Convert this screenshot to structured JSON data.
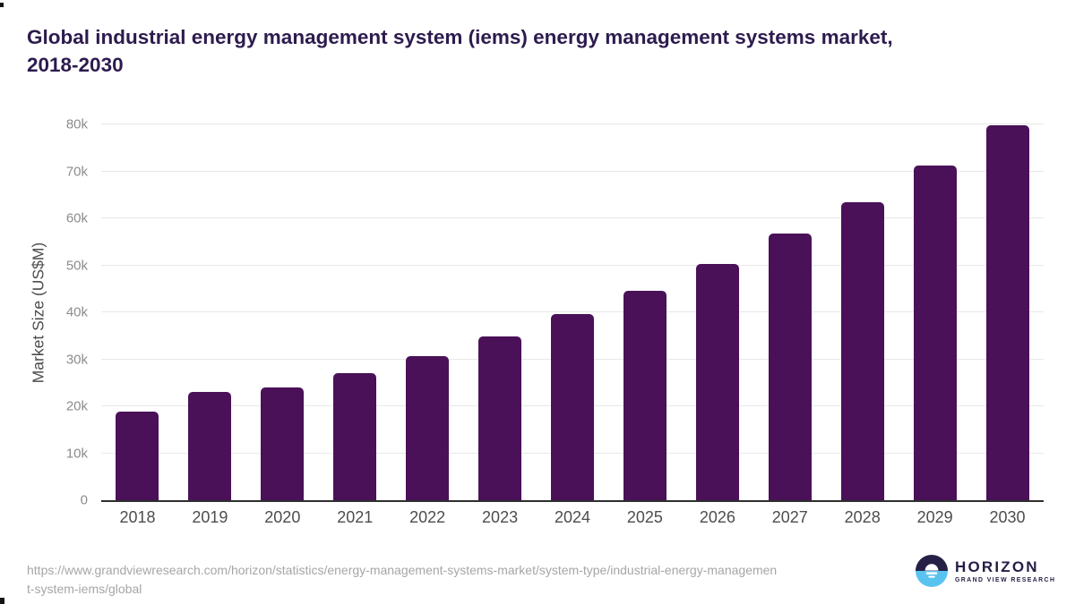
{
  "header": {
    "title_line1": "Global industrial energy management system (iems) energy management systems market,",
    "title_line2": "2018-2030"
  },
  "chart_data": {
    "type": "bar",
    "title": "Global industrial energy management system (iems) energy management systems market, 2018-2030",
    "categories": [
      "2018",
      "2019",
      "2020",
      "2021",
      "2022",
      "2023",
      "2024",
      "2025",
      "2026",
      "2027",
      "2028",
      "2029",
      "2030"
    ],
    "values": [
      18800,
      23000,
      24000,
      27100,
      30600,
      34900,
      39600,
      44600,
      50300,
      56800,
      63500,
      71300,
      79900
    ],
    "unit": "US$M",
    "xlabel": "",
    "ylabel": "Market Size (US$M)",
    "ylim": [
      0,
      80000
    ],
    "yticks": [
      {
        "value": 0,
        "label": "0"
      },
      {
        "value": 10000,
        "label": "10k"
      },
      {
        "value": 20000,
        "label": "20k"
      },
      {
        "value": 30000,
        "label": "30k"
      },
      {
        "value": 40000,
        "label": "40k"
      },
      {
        "value": 50000,
        "label": "50k"
      },
      {
        "value": 60000,
        "label": "60k"
      },
      {
        "value": 70000,
        "label": "70k"
      },
      {
        "value": 80000,
        "label": "80k"
      }
    ],
    "grid": "horizontal",
    "legend_position": "none",
    "bar_color": "#4a1158"
  },
  "footer": {
    "source_url_lines": [
      "https://www.grandviewresearch.com/horizon/statistics/energy-management-systems-market/system-type/industrial-energy-managemen",
      "t-system-iems/global"
    ]
  },
  "logo": {
    "brand": "HORIZON",
    "tagline": "GRAND VIEW RESEARCH"
  },
  "colors": {
    "title_text": "#2d1b4e",
    "bar": "#4a1158",
    "axis_title": "#4d4d4d",
    "x_tick": "#4d4d4d",
    "y_tick": "#8c8c8c",
    "gridline": "#e8e8e8",
    "baseline": "#2e2e2e",
    "url_text": "#a6a6a6",
    "logo_navy": "#262046",
    "logo_blue": "#59c3f0"
  }
}
